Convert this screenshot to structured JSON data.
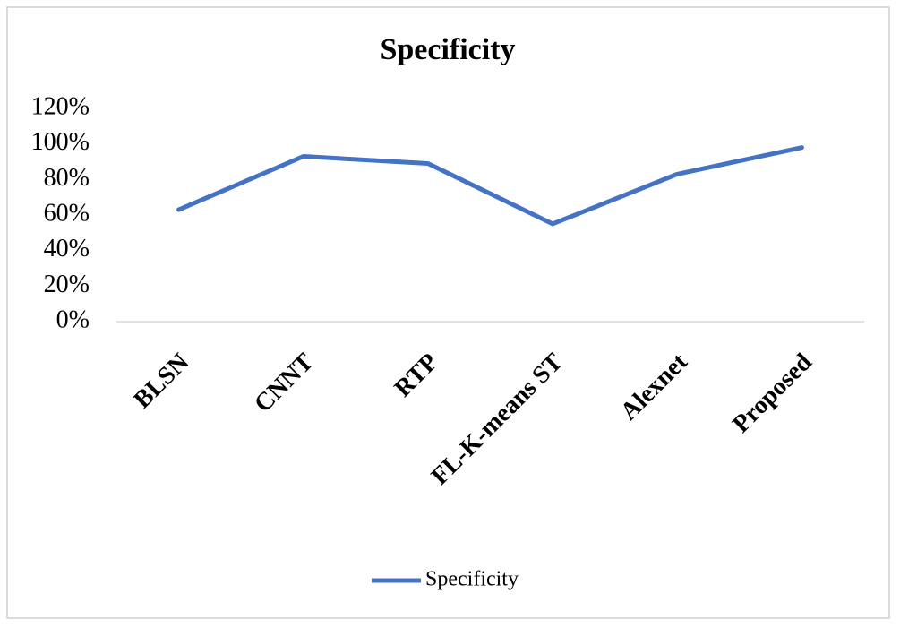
{
  "chart_data": {
    "type": "line",
    "title": "Specificity",
    "categories": [
      "BLSN",
      "CNNT",
      "RTP",
      "FL-K-means ST",
      "Alexnet",
      "Proposed"
    ],
    "series": [
      {
        "name": "Specificity",
        "color": "#4472c4",
        "values": [
          63,
          93,
          89,
          55,
          83,
          98
        ]
      }
    ],
    "ylim": [
      0,
      120
    ],
    "yticks": [
      {
        "value": 0,
        "label": "0%"
      },
      {
        "value": 20,
        "label": "20%"
      },
      {
        "value": 40,
        "label": "40%"
      },
      {
        "value": 60,
        "label": "60%"
      },
      {
        "value": 80,
        "label": "80%"
      },
      {
        "value": 100,
        "label": "100%"
      },
      {
        "value": 120,
        "label": "120%"
      }
    ],
    "grid": false,
    "legend": "bottom"
  }
}
